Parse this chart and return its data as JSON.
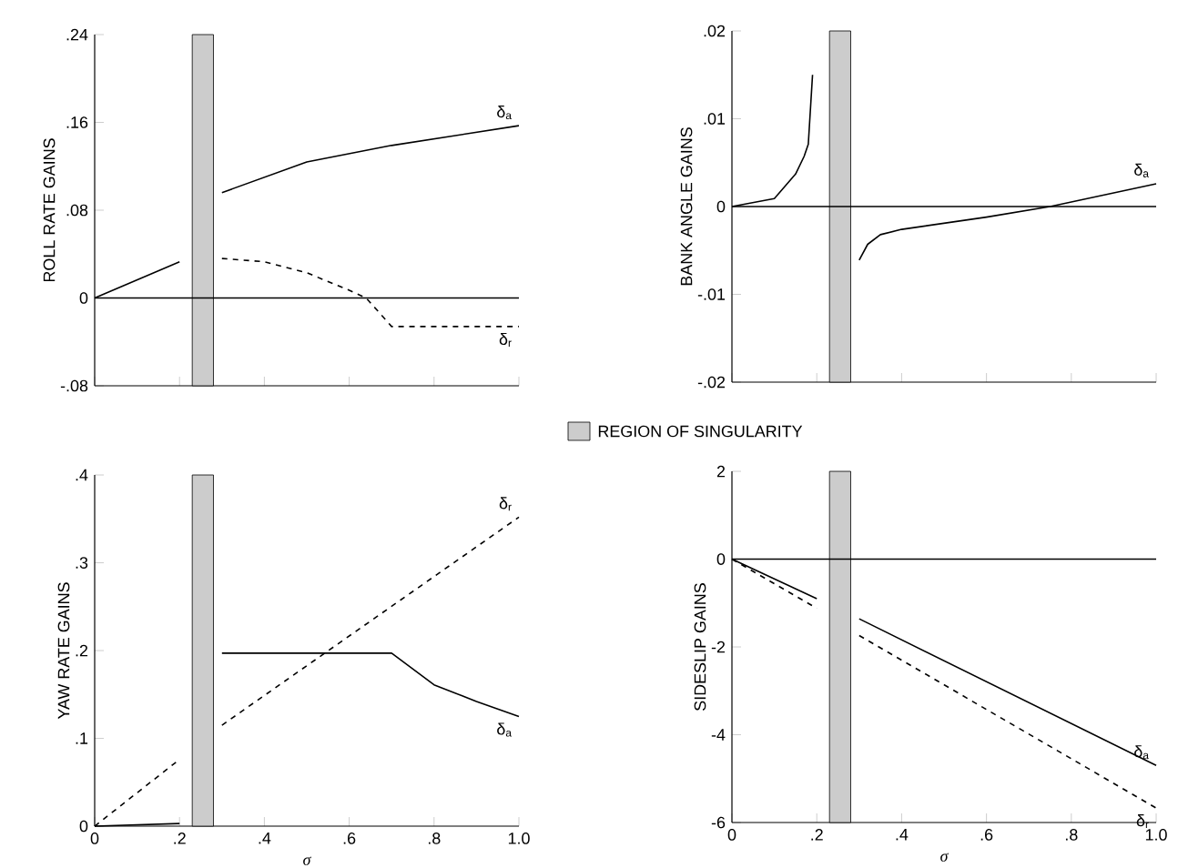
{
  "chart_data": [
    {
      "type": "line",
      "ylabel": "ROLL RATE GAINS",
      "xlim": [
        0,
        1
      ],
      "xticks": [
        {
          "value": 0,
          "label": null
        },
        {
          "value": 0.2,
          "label": null
        },
        {
          "value": 0.4,
          "label": null
        },
        {
          "value": 0.6,
          "label": null
        },
        {
          "value": 0.8,
          "label": null
        },
        {
          "value": 1,
          "label": null
        }
      ],
      "ylim": [
        -0.08,
        0.24
      ],
      "yticks": [
        {
          "value": -0.08,
          "label": "-.08"
        },
        0,
        {
          "value": 0.08,
          "label": ".08"
        },
        {
          "value": 0.16,
          "label": ".16"
        },
        {
          "value": 0.24,
          "label": ".24"
        }
      ],
      "tick_labels": "y",
      "grid": false,
      "legend": "bottom right",
      "series": [
        {
          "name": "δ$_{a}$",
          "color": "#000000",
          "line_style": "solid",
          "x": [
            0,
            0.2,
            null,
            0.3,
            0.5,
            0.7,
            1
          ],
          "values": [
            0,
            0.033,
            null,
            0.096,
            0.124,
            0.139,
            0.157
          ]
        },
        {
          "name": "δ$_{r}$",
          "color": "#000000",
          "line_style": "dashed",
          "x": [
            0.3,
            0.4,
            0.5,
            0.6,
            0.64,
            0.7,
            1
          ],
          "values": [
            0.036,
            0.033,
            0.023,
            0.007,
            0,
            -0.026,
            -0.026
          ]
        }
      ],
      "ref_lines": [
        {
          "axis": "y",
          "value": 0,
          "color": "#000000",
          "line_style": "solid"
        }
      ],
      "bands": [
        {
          "axis": "x",
          "from": 0.23,
          "to": 0.28,
          "label": "REGION OF SINGULARITY"
        }
      ]
    },
    {
      "type": "line",
      "ylabel": "BANK ANGLE GAINS",
      "xlim": [
        0,
        1
      ],
      "xticks": [
        {
          "value": 0,
          "label": null
        },
        {
          "value": 0.2,
          "label": null
        },
        {
          "value": 0.4,
          "label": null
        },
        {
          "value": 0.6,
          "label": null
        },
        {
          "value": 0.8,
          "label": null
        },
        {
          "value": 1,
          "label": null
        }
      ],
      "ylim": [
        -0.02,
        0.02
      ],
      "yticks": [
        {
          "value": -0.02,
          "label": "-.02"
        },
        {
          "value": -0.01,
          "label": "-.01"
        },
        0,
        {
          "value": 0.01,
          "label": ".01"
        },
        {
          "value": 0.02,
          "label": ".02"
        }
      ],
      "tick_labels": "y",
      "grid": false,
      "legend": false,
      "series": [
        {
          "name": "δ$_{a}$",
          "color": "#000000",
          "line_style": "solid",
          "x": [
            0,
            0.1,
            0.15,
            0.17,
            0.18,
            0.19,
            null,
            0.3,
            0.32,
            0.35,
            0.4,
            0.6,
            0.75,
            1
          ],
          "values": [
            0,
            0.0009,
            0.0037,
            0.0057,
            0.0071,
            0.015,
            null,
            -0.0061,
            -0.0043,
            -0.0032,
            -0.0026,
            -0.0012,
            0,
            0.0026
          ]
        }
      ],
      "ref_lines": [
        {
          "axis": "y",
          "value": 0,
          "color": "#000000",
          "line_style": "solid"
        }
      ],
      "bands": [
        {
          "axis": "x",
          "from": 0.23,
          "to": 0.28
        }
      ]
    },
    {
      "type": "line",
      "ylabel": "YAW RATE GAINS",
      "xlabel": "σ",
      "xlim": [
        0,
        1
      ],
      "xticks": [
        0,
        {
          "value": 0.2,
          "label": ".2"
        },
        {
          "value": 0.4,
          "label": ".4"
        },
        {
          "value": 0.6,
          "label": ".6"
        },
        {
          "value": 0.8,
          "label": ".8"
        },
        {
          "value": 1,
          "label": "1.0"
        }
      ],
      "ylim": [
        0,
        0.4
      ],
      "yticks": [
        0,
        {
          "value": 0.1,
          "label": ".1"
        },
        {
          "value": 0.2,
          "label": ".2"
        },
        {
          "value": 0.3,
          "label": ".3"
        },
        {
          "value": 0.4,
          "label": ".4"
        }
      ],
      "grid": false,
      "legend": false,
      "series": [
        {
          "name": "δ$_{a}$",
          "color": "#000000",
          "line_style": "solid",
          "x": [
            0,
            0.2,
            null,
            0.3,
            0.7,
            0.8,
            0.9,
            1
          ],
          "values": [
            0,
            0.003,
            null,
            0.197,
            0.197,
            0.161,
            0.142,
            0.125
          ]
        },
        {
          "name": "δ$_{r}$",
          "color": "#000000",
          "line_style": "dashed",
          "x": [
            0,
            0.2,
            null,
            0.3,
            1
          ],
          "values": [
            0,
            0.076,
            null,
            0.115,
            0.352
          ]
        }
      ],
      "bands": [
        {
          "axis": "x",
          "from": 0.23,
          "to": 0.28
        }
      ]
    },
    {
      "type": "line",
      "ylabel": "SIDESLIP GAINS",
      "xlabel": "σ",
      "xlim": [
        0,
        1
      ],
      "xticks": [
        0,
        {
          "value": 0.2,
          "label": ".2"
        },
        {
          "value": 0.4,
          "label": ".4"
        },
        {
          "value": 0.6,
          "label": ".6"
        },
        {
          "value": 0.8,
          "label": ".8"
        },
        {
          "value": 1,
          "label": "1.0"
        }
      ],
      "ylim": [
        -6,
        2
      ],
      "yticks": [
        -6,
        -4,
        -2,
        0,
        2
      ],
      "grid": false,
      "legend": false,
      "series": [
        {
          "name": "δ$_{a}$",
          "color": "#000000",
          "line_style": "solid",
          "x": [
            0,
            0.2,
            null,
            0.3,
            1
          ],
          "values": [
            0,
            -0.9,
            null,
            -1.36,
            -4.7
          ]
        },
        {
          "name": "δ$_{r}$",
          "color": "#000000",
          "line_style": "dashed",
          "x": [
            0,
            0.2,
            null,
            0.3,
            1
          ],
          "values": [
            0,
            -1.12,
            null,
            -1.74,
            -5.67
          ]
        }
      ],
      "ref_lines": [
        {
          "axis": "y",
          "value": 0,
          "color": "#000000",
          "line_style": "solid"
        }
      ],
      "bands": [
        {
          "axis": "x",
          "from": 0.23,
          "to": 0.28
        }
      ]
    }
  ]
}
